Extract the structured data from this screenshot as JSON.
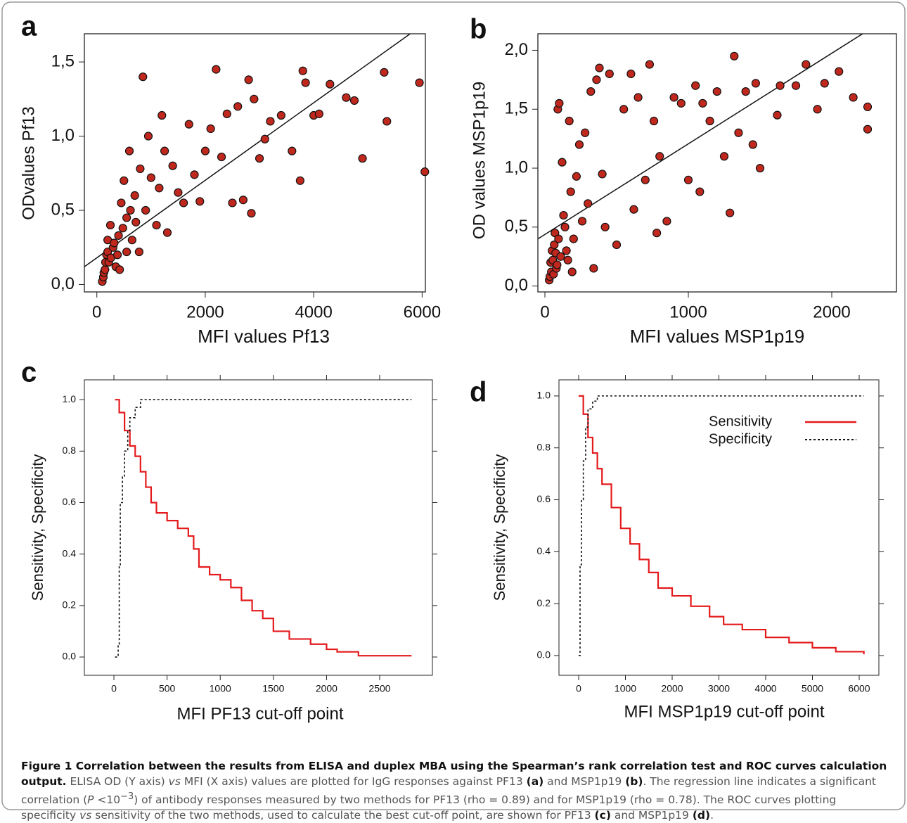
{
  "chart_data": [
    {
      "type": "scatter",
      "label": "a",
      "x_label": "MFI values Pf13",
      "y_label": "ODvalues Pf13",
      "x": [
        100,
        120,
        130,
        150,
        160,
        180,
        200,
        200,
        220,
        250,
        260,
        300,
        320,
        350,
        380,
        400,
        420,
        450,
        480,
        500,
        550,
        550,
        600,
        620,
        650,
        700,
        720,
        780,
        800,
        850,
        900,
        950,
        1000,
        1100,
        1150,
        1200,
        1250,
        1300,
        1400,
        1500,
        1600,
        1700,
        1800,
        1900,
        2000,
        2100,
        2200,
        2300,
        2400,
        2500,
        2600,
        2700,
        2800,
        2850,
        2900,
        3000,
        3100,
        3200,
        3400,
        3600,
        3750,
        3800,
        3850,
        4000,
        4100,
        4300,
        4600,
        4750,
        4900,
        5300,
        5350,
        5950,
        6050
      ],
      "values": [
        0.02,
        0.05,
        0.08,
        0.1,
        0.15,
        0.2,
        0.3,
        0.22,
        0.15,
        0.4,
        0.18,
        0.25,
        0.28,
        0.12,
        0.2,
        0.33,
        0.1,
        0.55,
        0.38,
        0.7,
        0.45,
        0.22,
        0.9,
        0.5,
        0.3,
        0.6,
        0.42,
        0.22,
        0.78,
        1.4,
        0.5,
        1.0,
        0.72,
        0.4,
        0.65,
        1.14,
        0.9,
        0.35,
        0.8,
        0.62,
        0.55,
        1.08,
        0.74,
        0.56,
        0.9,
        1.05,
        1.45,
        0.86,
        1.15,
        0.55,
        1.2,
        0.57,
        1.38,
        0.48,
        1.25,
        0.85,
        0.98,
        1.1,
        1.14,
        0.9,
        0.7,
        1.44,
        1.36,
        1.14,
        1.15,
        1.35,
        1.26,
        1.24,
        0.85,
        1.43,
        1.1,
        1.36,
        0.76
      ],
      "color": "#c0281e",
      "regression": {
        "x": [
          -230,
          5780
        ],
        "values": [
          0.12,
          1.69
        ]
      },
      "xlim": [
        -230,
        6060
      ],
      "ylim": [
        -0.05,
        1.69
      ],
      "xticks": [
        0,
        2000,
        4000,
        6000
      ],
      "yticks": [
        {
          "value": 0,
          "label": "0,0"
        },
        {
          "value": 0.5,
          "label": "0,5"
        },
        {
          "value": 1.0,
          "label": "1,0"
        },
        {
          "value": 1.5,
          "label": "1,5"
        }
      ]
    },
    {
      "type": "scatter",
      "label": "b",
      "x_label": "MFI values MSP1p19",
      "y_label": "OD values MSP1p19",
      "x": [
        30,
        35,
        40,
        45,
        50,
        55,
        60,
        65,
        70,
        75,
        80,
        85,
        90,
        95,
        100,
        110,
        120,
        130,
        140,
        150,
        160,
        170,
        180,
        190,
        200,
        220,
        240,
        260,
        280,
        300,
        320,
        340,
        360,
        380,
        400,
        420,
        450,
        500,
        550,
        600,
        620,
        650,
        700,
        730,
        760,
        780,
        800,
        850,
        900,
        950,
        1000,
        1050,
        1080,
        1100,
        1150,
        1200,
        1250,
        1290,
        1320,
        1350,
        1400,
        1450,
        1470,
        1500,
        1620,
        1640,
        1750,
        1820,
        1900,
        1950,
        2050,
        2150,
        2250,
        2250
      ],
      "values": [
        0.05,
        0.08,
        0.2,
        0.12,
        0.3,
        0.22,
        0.1,
        0.35,
        0.45,
        0.28,
        0.15,
        0.18,
        1.5,
        0.4,
        1.55,
        0.25,
        1.05,
        0.6,
        0.5,
        0.3,
        0.22,
        1.4,
        0.8,
        0.12,
        0.4,
        0.93,
        1.2,
        0.55,
        1.3,
        0.7,
        1.65,
        0.15,
        1.75,
        1.85,
        0.95,
        0.5,
        1.8,
        0.35,
        1.5,
        1.8,
        0.65,
        1.6,
        0.9,
        1.88,
        1.4,
        0.45,
        1.1,
        0.55,
        1.6,
        1.55,
        0.9,
        1.7,
        0.8,
        1.55,
        1.4,
        1.65,
        1.1,
        0.62,
        1.95,
        1.3,
        1.65,
        1.2,
        1.72,
        1.0,
        1.45,
        1.7,
        1.7,
        1.88,
        1.5,
        1.72,
        1.82,
        1.6,
        1.52,
        1.33
      ],
      "color": "#c0281e",
      "regression": {
        "x": [
          -49,
          2215
        ],
        "values": [
          0.4,
          2.14
        ]
      },
      "xlim": [
        -49,
        2451
      ],
      "ylim": [
        -0.05,
        2.14
      ],
      "xticks": [
        0,
        1000,
        2000
      ],
      "yticks": [
        {
          "value": 0,
          "label": "0,0"
        },
        {
          "value": 0.5,
          "label": "0,5"
        },
        {
          "value": 1.0,
          "label": "1,0"
        },
        {
          "value": 1.5,
          "label": "1,5"
        },
        {
          "value": 2.0,
          "label": "2,0"
        }
      ]
    },
    {
      "type": "line",
      "label": "c",
      "x_label": "MFI PF13 cut-off point",
      "y_label": "Sensitivity, Specificity",
      "step": "post",
      "series": [
        {
          "name": "Sensitivity",
          "color": "#e41a1c",
          "linestyle": "solid",
          "x": [
            10,
            50,
            100,
            150,
            200,
            250,
            300,
            350,
            400,
            500,
            600,
            700,
            750,
            800,
            900,
            1000,
            1100,
            1200,
            1300,
            1400,
            1500,
            1650,
            1850,
            2000,
            2100,
            2300,
            2800
          ],
          "values": [
            1.0,
            0.95,
            0.88,
            0.82,
            0.78,
            0.72,
            0.66,
            0.6,
            0.56,
            0.53,
            0.5,
            0.47,
            0.42,
            0.35,
            0.32,
            0.3,
            0.27,
            0.22,
            0.18,
            0.15,
            0.1,
            0.07,
            0.05,
            0.03,
            0.02,
            0.005,
            0.005
          ]
        },
        {
          "name": "Specificity",
          "color": "#111111",
          "linestyle": "dotted",
          "x": [
            10,
            40,
            50,
            60,
            80,
            100,
            130,
            150,
            200,
            250,
            2800
          ],
          "values": [
            0,
            0.05,
            0.35,
            0.6,
            0.7,
            0.8,
            0.88,
            0.93,
            0.97,
            1.0,
            1.0
          ]
        }
      ],
      "xlim": [
        -278,
        2996
      ],
      "ylim": [
        -0.071,
        1.077
      ],
      "xticks": [
        0,
        500,
        1000,
        1500,
        2000,
        2500
      ],
      "yticks": [
        {
          "value": 0,
          "label": "0.0"
        },
        0.2,
        0.4,
        0.6,
        0.8,
        {
          "value": 1.0,
          "label": "1.0"
        }
      ]
    },
    {
      "type": "line",
      "label": "d",
      "x_label": "MFI MSP1p19 cut-off point",
      "y_label": "Sensitivity, Specificity",
      "step": "post",
      "legend": "top-right",
      "series": [
        {
          "name": "Sensitivity",
          "color": "#e41a1c",
          "linestyle": "solid",
          "x": [
            0,
            100,
            200,
            300,
            400,
            500,
            700,
            900,
            1100,
            1300,
            1500,
            1700,
            2000,
            2400,
            2800,
            3100,
            3500,
            4000,
            4500,
            5000,
            5500,
            6100
          ],
          "values": [
            1.0,
            0.93,
            0.84,
            0.78,
            0.72,
            0.66,
            0.57,
            0.49,
            0.43,
            0.37,
            0.32,
            0.26,
            0.23,
            0.19,
            0.15,
            0.12,
            0.1,
            0.07,
            0.05,
            0.03,
            0.015,
            0.005
          ]
        },
        {
          "name": "Specificity",
          "color": "#111111",
          "linestyle": "dotted",
          "x": [
            0,
            30,
            60,
            100,
            150,
            200,
            300,
            400,
            500,
            6100
          ],
          "values": [
            0,
            0.35,
            0.6,
            0.75,
            0.88,
            0.95,
            0.98,
            1.0,
            1.0,
            1.0
          ]
        }
      ],
      "xlim": [
        -421,
        6421
      ],
      "ylim": [
        -0.076,
        1.062
      ],
      "xticks": [
        0,
        1000,
        2000,
        3000,
        4000,
        5000,
        6000
      ],
      "yticks": [
        {
          "value": 0,
          "label": "0.0"
        },
        0.2,
        0.4,
        0.6,
        0.8,
        {
          "value": 1.0,
          "label": "1.0"
        }
      ]
    }
  ],
  "caption": [
    "Figure 1 Correlation between the results from ELISA and duplex MBA using the Spearman’s rank correlation test and ROC curves calculation output.",
    " ELISA OD (Y axis) ",
    "vs",
    " MFI (X axis) values are plotted for IgG responses against PF13 ",
    "(a)",
    " and MSP1p19 ",
    "(b)",
    ". The regression line indicates a significant correlation (",
    "P",
    " <10",
    "−3",
    ") of antibody responses measured by two methods for PF13 (rho = 0.89) and for MSP1p19 (rho = 0.78). The ROC curves plotting specificity ",
    "vs",
    " sensitivity of the two methods, used to calculate the best cut-off point, are shown for PF13 ",
    "(c)",
    " and MSP1p19 ",
    "(d)",
    "."
  ]
}
